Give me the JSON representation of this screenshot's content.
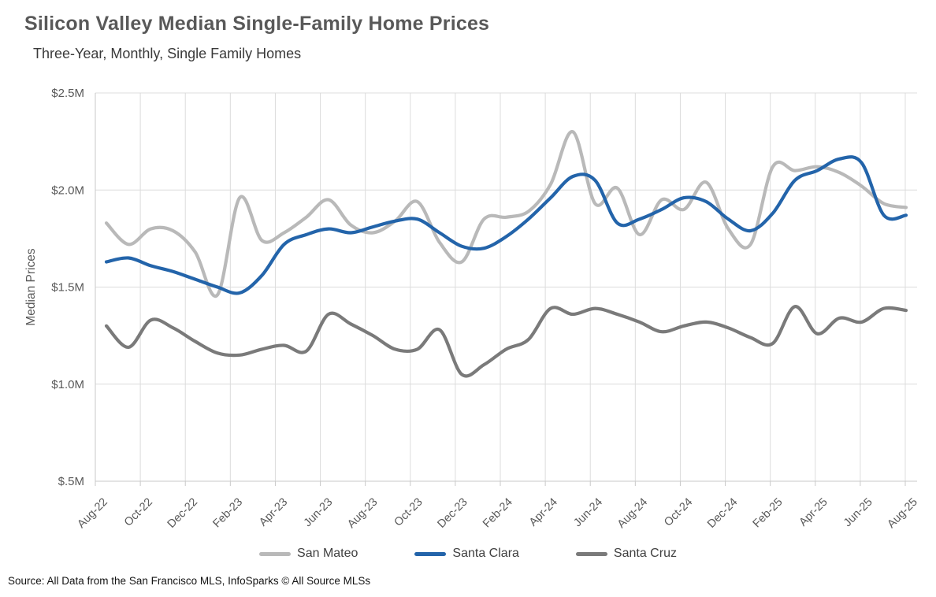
{
  "header": {
    "title": "Silicon Valley Median Single-Family Home Prices",
    "subtitle": "Three-Year, Monthly, Single Family Homes"
  },
  "source": "Source: All Data from the San Francisco MLS, InfoSparks © All Source MLSs",
  "colors": {
    "san_mateo": "#b9b9b9",
    "santa_clara": "#2364aa",
    "santa_cruz": "#7a7a7a",
    "gridline": "#dcdcdc",
    "axis_line": "#c9c9c9",
    "tick_text": "#595959"
  },
  "legend": [
    {
      "label": "San Mateo",
      "color": "#b9b9b9"
    },
    {
      "label": "Santa Clara",
      "color": "#2364aa"
    },
    {
      "label": "Santa Cruz",
      "color": "#7a7a7a"
    }
  ],
  "chart_data": {
    "type": "line",
    "title": "Silicon Valley Median Single-Family Home Prices",
    "subtitle": "Three-Year, Monthly, Single Family Homes",
    "xlabel": "",
    "ylabel": "Median Prices",
    "ylim": [
      0.5,
      2.5
    ],
    "grid": true,
    "legend_position": "bottom",
    "y_tick_labels": [
      "$2.5M",
      "$2.0M",
      "$1.5M",
      "$1.0M",
      "$.5M"
    ],
    "y_tick_values": [
      2.5,
      2.0,
      1.5,
      1.0,
      0.5
    ],
    "x": [
      "Aug-22",
      "Sep-22",
      "Oct-22",
      "Nov-22",
      "Dec-22",
      "Jan-23",
      "Feb-23",
      "Mar-23",
      "Apr-23",
      "May-23",
      "Jun-23",
      "Jul-23",
      "Aug-23",
      "Sep-23",
      "Oct-23",
      "Nov-23",
      "Dec-23",
      "Jan-24",
      "Feb-24",
      "Mar-24",
      "Apr-24",
      "May-24",
      "Jun-24",
      "Jul-24",
      "Aug-24",
      "Sep-24",
      "Oct-24",
      "Nov-24",
      "Dec-24",
      "Jan-25",
      "Feb-25",
      "Mar-25",
      "Apr-25",
      "May-25",
      "Jun-25",
      "Jul-25",
      "Aug-25"
    ],
    "x_tick_every": 2,
    "units": "$M",
    "series": [
      {
        "name": "San Mateo",
        "color": "#b9b9b9",
        "values": [
          1.83,
          1.72,
          1.8,
          1.79,
          1.68,
          1.46,
          1.96,
          1.74,
          1.78,
          1.86,
          1.95,
          1.82,
          1.78,
          1.84,
          1.94,
          1.73,
          1.63,
          1.85,
          1.86,
          1.89,
          2.03,
          2.3,
          1.93,
          2.01,
          1.77,
          1.95,
          1.9,
          2.04,
          1.8,
          1.72,
          2.12,
          2.1,
          2.12,
          2.09,
          2.02,
          1.93,
          1.91
        ]
      },
      {
        "name": "Santa Clara",
        "color": "#2364aa",
        "values": [
          1.63,
          1.65,
          1.61,
          1.58,
          1.54,
          1.5,
          1.47,
          1.56,
          1.72,
          1.77,
          1.8,
          1.78,
          1.81,
          1.84,
          1.85,
          1.78,
          1.71,
          1.7,
          1.76,
          1.85,
          1.96,
          2.07,
          2.05,
          1.83,
          1.85,
          1.9,
          1.96,
          1.94,
          1.85,
          1.79,
          1.88,
          2.05,
          2.1,
          2.16,
          2.14,
          1.87,
          1.87
        ]
      },
      {
        "name": "Santa Cruz",
        "color": "#7a7a7a",
        "values": [
          1.3,
          1.19,
          1.33,
          1.29,
          1.22,
          1.16,
          1.15,
          1.18,
          1.2,
          1.17,
          1.36,
          1.31,
          1.25,
          1.18,
          1.18,
          1.28,
          1.05,
          1.1,
          1.18,
          1.23,
          1.39,
          1.36,
          1.39,
          1.36,
          1.32,
          1.27,
          1.3,
          1.32,
          1.29,
          1.24,
          1.21,
          1.4,
          1.26,
          1.34,
          1.32,
          1.39,
          1.38
        ]
      }
    ]
  }
}
